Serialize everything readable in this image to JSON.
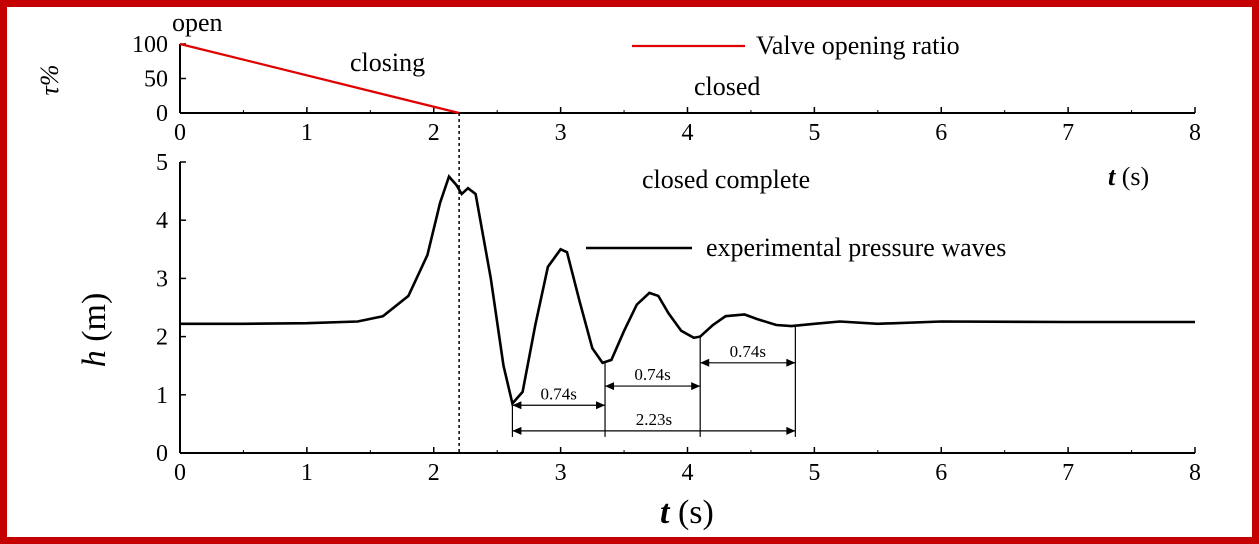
{
  "chart_data": [
    {
      "type": "line",
      "ylabel": "τ%",
      "xlabel": "t (s)",
      "xlim": [
        0,
        8
      ],
      "ylim": [
        0,
        100
      ],
      "x_ticks": [
        "0",
        "1",
        "2",
        "3",
        "4",
        "5",
        "6",
        "7",
        "8"
      ],
      "y_ticks": [
        "0",
        "50",
        "100"
      ],
      "series": [
        {
          "name": "Valve opening ratio",
          "color": "#e00000",
          "x": [
            0,
            2.2
          ],
          "y": [
            100,
            0
          ]
        }
      ],
      "annotations": [
        "open",
        "closing",
        "closed"
      ],
      "legend_position": "top-right"
    },
    {
      "type": "line",
      "ylabel": "h (m)",
      "xlabel": "t (s)",
      "xlim": [
        0,
        8
      ],
      "ylim": [
        0,
        5
      ],
      "x_ticks": [
        "0",
        "1",
        "2",
        "3",
        "4",
        "5",
        "6",
        "7",
        "8"
      ],
      "y_ticks": [
        "0",
        "1",
        "2",
        "3",
        "4",
        "5"
      ],
      "series": [
        {
          "name": "experimental pressure waves",
          "color": "#000000",
          "x": [
            0,
            0.5,
            1.0,
            1.4,
            1.6,
            1.8,
            1.95,
            2.05,
            2.12,
            2.18,
            2.22,
            2.27,
            2.33,
            2.45,
            2.55,
            2.62,
            2.7,
            2.8,
            2.9,
            3.0,
            3.05,
            3.15,
            3.25,
            3.33,
            3.4,
            3.5,
            3.6,
            3.7,
            3.77,
            3.85,
            3.95,
            4.05,
            4.1,
            4.2,
            4.3,
            4.45,
            4.55,
            4.7,
            4.82,
            5.0,
            5.2,
            5.5,
            6.0,
            7.0,
            8.0
          ],
          "y": [
            2.22,
            2.22,
            2.23,
            2.26,
            2.35,
            2.7,
            3.4,
            4.3,
            4.75,
            4.6,
            4.45,
            4.55,
            4.45,
            3.0,
            1.5,
            0.85,
            1.05,
            2.2,
            3.2,
            3.5,
            3.45,
            2.6,
            1.8,
            1.55,
            1.6,
            2.1,
            2.55,
            2.75,
            2.7,
            2.4,
            2.1,
            1.98,
            2.0,
            2.2,
            2.35,
            2.38,
            2.3,
            2.2,
            2.18,
            2.22,
            2.26,
            2.22,
            2.26,
            2.25,
            2.25
          ]
        }
      ],
      "annotations": [
        "closed complete"
      ],
      "dimensions": [
        {
          "label": "0.74s",
          "from": 2.62,
          "to": 3.35
        },
        {
          "label": "0.74s",
          "from": 3.35,
          "to": 4.1
        },
        {
          "label": "0.74s",
          "from": 4.1,
          "to": 4.85
        },
        {
          "label": "2.23s",
          "from": 2.62,
          "to": 4.85
        }
      ],
      "reference_line_x": 2.2,
      "legend_position": "middle-right"
    }
  ]
}
